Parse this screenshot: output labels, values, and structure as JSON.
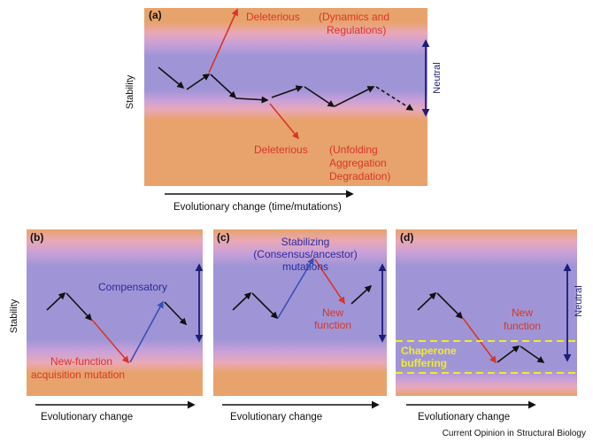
{
  "colors": {
    "orange": "#e8a36c",
    "pink": "#e7a6c4",
    "purple": "#9f95d6",
    "red_text": "#d6362a",
    "blue_text": "#2b2b9a",
    "yellow": "#f2ea2a",
    "navy": "#1f1c7a",
    "black": "#111111"
  },
  "panel_a": {
    "label": "(a)",
    "y_label": "Stability",
    "deleterious_top": "Deleterious",
    "dynamics": "(Dynamics and",
    "regulations": "Regulations)",
    "deleterious_bottom": "Deleterious",
    "unfolding": "(Unfolding",
    "aggregation": "Aggregation",
    "degradation": "Degradation)",
    "neutral": "Neutral",
    "x_label": "Evolutionary change (time/mutations)"
  },
  "panel_b": {
    "label": "(b)",
    "y_label": "Stability",
    "compensatory": "Compensatory",
    "new_function_1": "New-function",
    "new_function_2": "acquisition mutation",
    "x_label": "Evolutionary change"
  },
  "panel_c": {
    "label": "(c)",
    "stabilizing_1": "Stabilizing",
    "stabilizing_2": "(Consensus/ancestor)",
    "stabilizing_3": "mutations",
    "new_1": "New",
    "new_2": "function",
    "x_label": "Evolutionary change"
  },
  "panel_d": {
    "label": "(d)",
    "new_1": "New",
    "new_2": "function",
    "chaperone_1": "Chaperone",
    "chaperone_2": "buffering",
    "neutral": "Neutral",
    "x_label": "Evolutionary change"
  },
  "credit": "Current Opinion in Structural Biology"
}
